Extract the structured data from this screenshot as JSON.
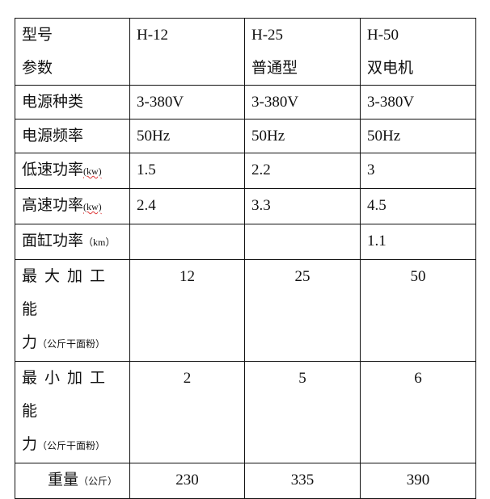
{
  "header": {
    "label_line1": "型号",
    "label_line2": "参数",
    "models": [
      {
        "name": "H-12",
        "sub": ""
      },
      {
        "name": "H-25",
        "sub": "普通型"
      },
      {
        "name": "H-50",
        "sub": "双电机"
      }
    ]
  },
  "rows": [
    {
      "label": "电源种类",
      "unit": "",
      "values": [
        "3-380V",
        "3-380V",
        "3-380V"
      ]
    },
    {
      "label": "电源频率",
      "unit": "",
      "values": [
        "50Hz",
        "50Hz",
        "50Hz"
      ]
    },
    {
      "label": "低速功率",
      "unit": "(kw)",
      "values": [
        "1.5",
        "2.2",
        "3"
      ]
    },
    {
      "label": "高速功率",
      "unit": "(kw)",
      "values": [
        "2.4",
        "3.3",
        "4.5"
      ]
    },
    {
      "label": "面缸功率",
      "unit": "（km）",
      "values": [
        "",
        "",
        "1.1"
      ]
    },
    {
      "label": "最大加工能",
      "label2": "力",
      "unit": "（公斤干面粉）",
      "values": [
        "12",
        "25",
        "50"
      ]
    },
    {
      "label": "最小加工能",
      "label2": "力",
      "unit": "（公斤干面粉）",
      "values": [
        "2",
        "5",
        "6"
      ]
    },
    {
      "label": "重量",
      "unit": "（公斤）",
      "values": [
        "230",
        "335",
        "390"
      ]
    }
  ]
}
